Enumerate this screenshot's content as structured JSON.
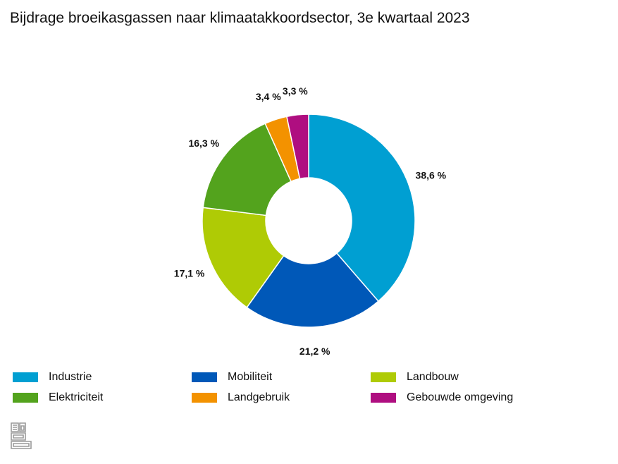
{
  "chart_data": {
    "type": "pie",
    "donut": true,
    "title": "Bijdrage broeikasgassen naar klimaatakkoordsector, 3e kwartaal 2023",
    "categories": [
      "Industrie",
      "Mobiliteit",
      "Landbouw",
      "Elektriciteit",
      "Landgebruik",
      "Gebouwde omgeving"
    ],
    "values": [
      38.6,
      21.2,
      17.1,
      16.3,
      3.4,
      3.3
    ],
    "data_labels": [
      "38,6 %",
      "21,2 %",
      "17,1 %",
      "16,3 %",
      "3,4 %",
      "3,3 %"
    ],
    "colors": [
      "#009fd2",
      "#0058b8",
      "#afcb05",
      "#53a31d",
      "#f39200",
      "#af0e80"
    ],
    "legend_position": "bottom",
    "unit": "%"
  },
  "branding": {
    "logo": "cbs-logo-icon"
  }
}
